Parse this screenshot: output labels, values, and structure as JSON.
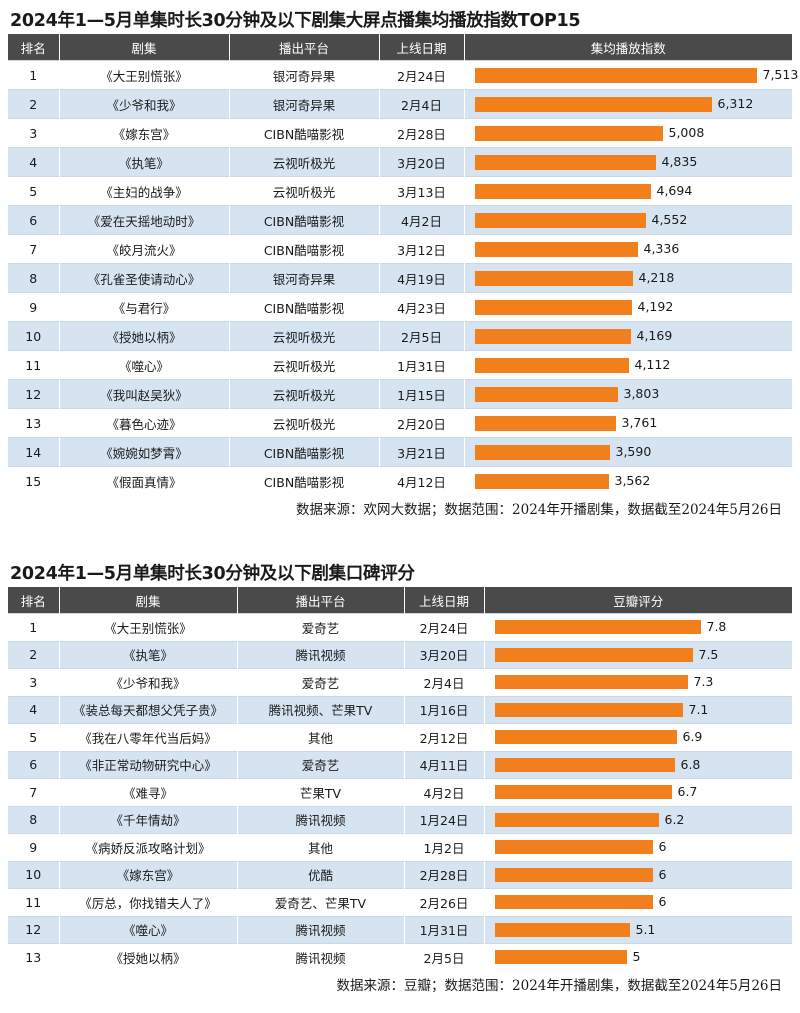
{
  "section1": {
    "title": "2024年1—5月单集时长30分钟及以下剧集大屏点播集均播放指数TOP15",
    "headers": [
      "排名",
      "剧集",
      "播出平台",
      "上线日期",
      "集均播放指数"
    ],
    "source": "数据来源：欢网大数据；数据范围：2024年开播剧集，数据截至2024年5月26日"
  },
  "section2": {
    "title": "2024年1—5月单集时长30分钟及以下剧集口碑评分",
    "headers": [
      "排名",
      "剧集",
      "播出平台",
      "上线日期",
      "豆瓣评分"
    ],
    "source": "数据来源：豆瓣；数据范围：2024年开播剧集，数据截至2024年5月26日"
  },
  "chart_data": [
    {
      "type": "table",
      "title": "2024年1—5月单集时长30分钟及以下剧集大屏点播集均播放指数TOP15",
      "bar_color": "#f07f1c",
      "value_max": 7513,
      "rows": [
        {
          "rank": "1",
          "drama": "《大王别慌张》",
          "platform": "银河奇异果",
          "date": "2月24日",
          "value": 7513,
          "value_label": "7,513"
        },
        {
          "rank": "2",
          "drama": "《少爷和我》",
          "platform": "银河奇异果",
          "date": "2月4日",
          "value": 6312,
          "value_label": "6,312"
        },
        {
          "rank": "3",
          "drama": "《嫁东宫》",
          "platform": "CIBN酷喵影视",
          "date": "2月28日",
          "value": 5008,
          "value_label": "5,008"
        },
        {
          "rank": "4",
          "drama": "《执笔》",
          "platform": "云视听极光",
          "date": "3月20日",
          "value": 4835,
          "value_label": "4,835"
        },
        {
          "rank": "5",
          "drama": "《主妇的战争》",
          "platform": "云视听极光",
          "date": "3月13日",
          "value": 4694,
          "value_label": "4,694"
        },
        {
          "rank": "6",
          "drama": "《爱在天摇地动时》",
          "platform": "CIBN酷喵影视",
          "date": "4月2日",
          "value": 4552,
          "value_label": "4,552"
        },
        {
          "rank": "7",
          "drama": "《皎月流火》",
          "platform": "CIBN酷喵影视",
          "date": "3月12日",
          "value": 4336,
          "value_label": "4,336"
        },
        {
          "rank": "8",
          "drama": "《孔雀圣使请动心》",
          "platform": "银河奇异果",
          "date": "4月19日",
          "value": 4218,
          "value_label": "4,218"
        },
        {
          "rank": "9",
          "drama": "《与君行》",
          "platform": "CIBN酷喵影视",
          "date": "4月23日",
          "value": 4192,
          "value_label": "4,192"
        },
        {
          "rank": "10",
          "drama": "《授她以柄》",
          "platform": "云视听极光",
          "date": "2月5日",
          "value": 4169,
          "value_label": "4,169"
        },
        {
          "rank": "11",
          "drama": "《噬心》",
          "platform": "云视听极光",
          "date": "1月31日",
          "value": 4112,
          "value_label": "4,112"
        },
        {
          "rank": "12",
          "drama": "《我叫赵吴狄》",
          "platform": "云视听极光",
          "date": "1月15日",
          "value": 3803,
          "value_label": "3,803"
        },
        {
          "rank": "13",
          "drama": "《暮色心迹》",
          "platform": "云视听极光",
          "date": "2月20日",
          "value": 3761,
          "value_label": "3,761"
        },
        {
          "rank": "14",
          "drama": "《婉婉如梦霄》",
          "platform": "CIBN酷喵影视",
          "date": "3月21日",
          "value": 3590,
          "value_label": "3,590"
        },
        {
          "rank": "15",
          "drama": "《假面真情》",
          "platform": "CIBN酷喵影视",
          "date": "4月12日",
          "value": 3562,
          "value_label": "3,562"
        }
      ]
    },
    {
      "type": "table",
      "title": "2024年1—5月单集时长30分钟及以下剧集口碑评分",
      "bar_color": "#f07f1c",
      "value_max": 7.8,
      "rows": [
        {
          "rank": "1",
          "drama": "《大王别慌张》",
          "platform": "爱奇艺",
          "date": "2月24日",
          "value": 7.8,
          "value_label": "7.8"
        },
        {
          "rank": "2",
          "drama": "《执笔》",
          "platform": "腾讯视频",
          "date": "3月20日",
          "value": 7.5,
          "value_label": "7.5"
        },
        {
          "rank": "3",
          "drama": "《少爷和我》",
          "platform": "爱奇艺",
          "date": "2月4日",
          "value": 7.3,
          "value_label": "7.3"
        },
        {
          "rank": "4",
          "drama": "《装总每天都想父凭子贵》",
          "platform": "腾讯视频、芒果TV",
          "date": "1月16日",
          "value": 7.1,
          "value_label": "7.1"
        },
        {
          "rank": "5",
          "drama": "《我在八零年代当后妈》",
          "platform": "其他",
          "date": "2月12日",
          "value": 6.9,
          "value_label": "6.9"
        },
        {
          "rank": "6",
          "drama": "《非正常动物研究中心》",
          "platform": "爱奇艺",
          "date": "4月11日",
          "value": 6.8,
          "value_label": "6.8"
        },
        {
          "rank": "7",
          "drama": "《难寻》",
          "platform": "芒果TV",
          "date": "4月2日",
          "value": 6.7,
          "value_label": "6.7"
        },
        {
          "rank": "8",
          "drama": "《千年情劫》",
          "platform": "腾讯视频",
          "date": "1月24日",
          "value": 6.2,
          "value_label": "6.2"
        },
        {
          "rank": "9",
          "drama": "《病娇反派攻略计划》",
          "platform": "其他",
          "date": "1月2日",
          "value": 6,
          "value_label": "6"
        },
        {
          "rank": "10",
          "drama": "《嫁东宫》",
          "platform": "优酷",
          "date": "2月28日",
          "value": 6,
          "value_label": "6"
        },
        {
          "rank": "11",
          "drama": "《厉总，你找错夫人了》",
          "platform": "爱奇艺、芒果TV",
          "date": "2月26日",
          "value": 6,
          "value_label": "6"
        },
        {
          "rank": "12",
          "drama": "《噬心》",
          "platform": "腾讯视频",
          "date": "1月31日",
          "value": 5.1,
          "value_label": "5.1"
        },
        {
          "rank": "13",
          "drama": "《授她以柄》",
          "platform": "腾讯视频",
          "date": "2月5日",
          "value": 5,
          "value_label": "5"
        }
      ]
    }
  ]
}
